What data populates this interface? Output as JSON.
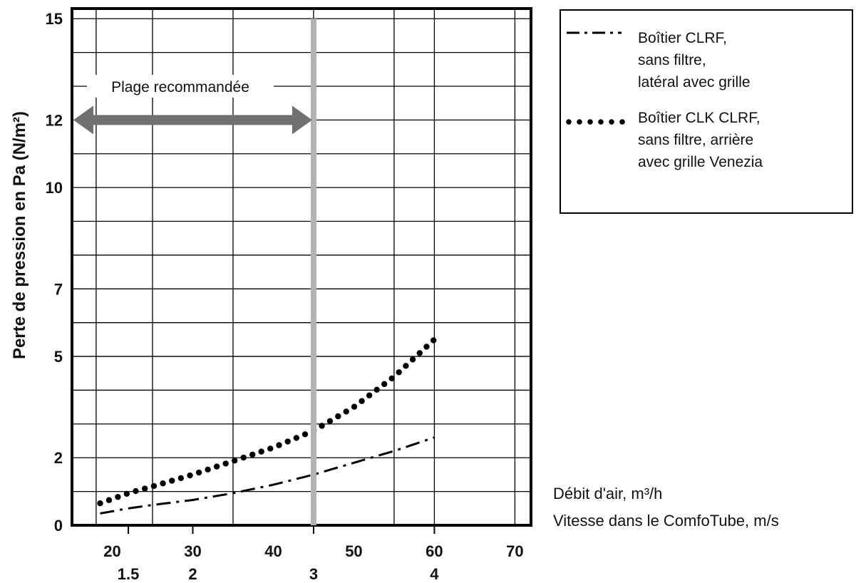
{
  "chart_data": {
    "type": "line",
    "ylabel": "Perte de pression en Pa (N/m²)",
    "xlabel": "Débit d'air, m³/h",
    "x2label": "Vitesse dans le ComfoTube, m/s",
    "xlim": [
      15,
      72
    ],
    "ylim": [
      0,
      15.3
    ],
    "x_ticks": [
      20,
      30,
      40,
      50,
      60,
      70
    ],
    "x_tick_labels": [
      "20",
      "30",
      "40",
      "50",
      "60",
      "70"
    ],
    "x2_ticks": [
      22,
      30,
      45,
      60
    ],
    "x2_tick_labels": [
      "1.5",
      "2",
      "3",
      "4"
    ],
    "y_ticks": [
      0,
      2,
      5,
      7,
      10,
      12,
      15
    ],
    "y_tick_labels": [
      "0",
      "2",
      "5",
      "7",
      "10",
      "12",
      "15"
    ],
    "grid": true,
    "x_gridlines": [
      18,
      25,
      35,
      45,
      55,
      60,
      70
    ],
    "y_gridlines": [
      1,
      2,
      3,
      4,
      5,
      6,
      7,
      8,
      9,
      10,
      11,
      12,
      13,
      14,
      15
    ],
    "series": [
      {
        "name": "Boîtier CLRF, sans filtre, latéral avec grille",
        "style": "dash-dot",
        "x": [
          18.5,
          22,
          25,
          30,
          35,
          40,
          45,
          50,
          55,
          60
        ],
        "y": [
          0.35,
          0.5,
          0.6,
          0.75,
          0.95,
          1.2,
          1.5,
          1.85,
          2.2,
          2.6
        ]
      },
      {
        "name": "Boîtier CLK CLRF, sans filtre, arrière avec grille Venezia",
        "style": "dotted",
        "x": [
          18.5,
          22,
          25,
          30,
          35,
          40,
          45,
          50,
          55,
          60
        ],
        "y": [
          0.65,
          0.95,
          1.15,
          1.5,
          1.9,
          2.3,
          2.8,
          3.5,
          4.4,
          5.5
        ]
      }
    ],
    "recommended_max_x": 45,
    "annotation": "Plage recommandée",
    "legend_position": "right"
  },
  "colors": {
    "axis": "#000000",
    "grid": "#000000",
    "vline": "#b3b3b3",
    "arrow": "#707070",
    "series": "#000000"
  }
}
